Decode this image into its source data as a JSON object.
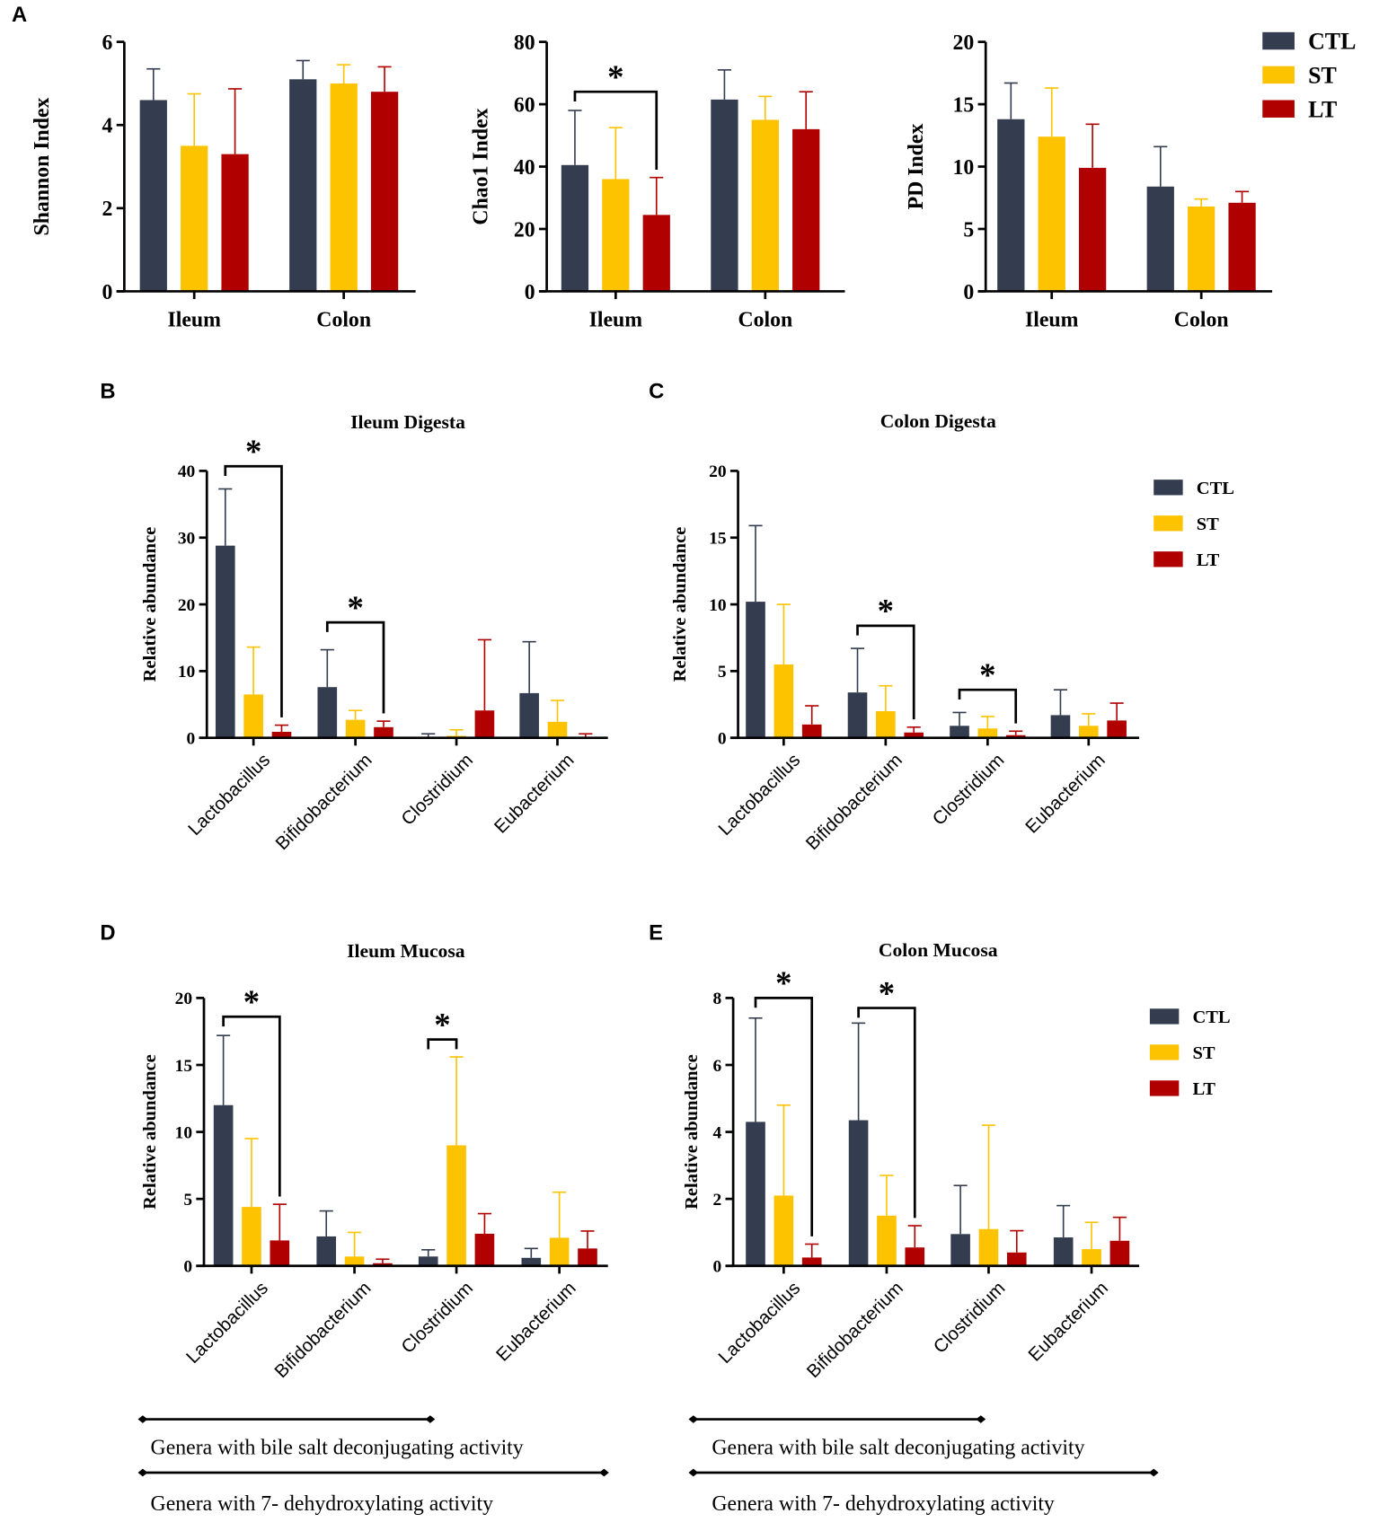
{
  "colors": {
    "CTL": "#333d4f",
    "ST": "#fdc300",
    "LT": "#b00000"
  },
  "legend": {
    "entries": [
      "CTL",
      "ST",
      "LT"
    ]
  },
  "footnotes": {
    "bile_salt": "Genera with bile salt deconjugating activity",
    "dehydroxylating": "Genera with 7- dehydroxylating activity"
  },
  "chart_data": [
    {
      "panel_label": "A",
      "type": "bar",
      "title": "",
      "ylabel": "Shannon Index",
      "ylim": [
        0,
        6
      ],
      "yticks": [
        "0",
        "2",
        "4",
        "6"
      ],
      "categories": [
        "Ileum",
        "Colon"
      ],
      "series": [
        {
          "name": "CTL",
          "values": [
            4.6,
            5.1
          ],
          "errors": [
            0.75,
            0.45
          ]
        },
        {
          "name": "ST",
          "values": [
            3.5,
            5.0
          ],
          "errors": [
            1.25,
            0.45
          ]
        },
        {
          "name": "LT",
          "values": [
            3.3,
            4.8
          ],
          "errors": [
            1.57,
            0.6
          ]
        }
      ],
      "significance": []
    },
    {
      "panel_label": "",
      "type": "bar",
      "title": "",
      "ylabel": "Chao1 Index",
      "ylim": [
        0,
        80
      ],
      "yticks": [
        "0",
        "20",
        "40",
        "60",
        "80"
      ],
      "categories": [
        "Ileum",
        "Colon"
      ],
      "series": [
        {
          "name": "CTL",
          "values": [
            40.5,
            61.5
          ],
          "errors": [
            17.5,
            9.5
          ]
        },
        {
          "name": "ST",
          "values": [
            36,
            55
          ],
          "errors": [
            16.5,
            7.5
          ]
        },
        {
          "name": "LT",
          "values": [
            24.5,
            52
          ],
          "errors": [
            12,
            12
          ]
        }
      ],
      "significance": [
        {
          "category": 0,
          "from": 0,
          "to": 2,
          "label": "*",
          "y": 64
        }
      ]
    },
    {
      "panel_label": "",
      "type": "bar",
      "title": "",
      "ylabel": "PD Index",
      "ylim": [
        0,
        20
      ],
      "yticks": [
        "0",
        "5",
        "10",
        "15",
        "20"
      ],
      "categories": [
        "Ileum",
        "Colon"
      ],
      "series": [
        {
          "name": "CTL",
          "values": [
            13.8,
            8.4
          ],
          "errors": [
            2.9,
            3.2
          ]
        },
        {
          "name": "ST",
          "values": [
            12.4,
            6.8
          ],
          "errors": [
            3.9,
            0.6
          ]
        },
        {
          "name": "LT",
          "values": [
            9.9,
            7.1
          ],
          "errors": [
            3.5,
            0.9
          ]
        }
      ],
      "significance": []
    },
    {
      "panel_label": "B",
      "type": "bar",
      "title": "Ileum Digesta",
      "ylabel": "Relative abundance",
      "ylim": [
        0,
        40
      ],
      "yticks": [
        "0",
        "10",
        "20",
        "30",
        "40"
      ],
      "categories": [
        "Lactobacillus",
        "Bifidobacterium",
        "Clostridium",
        "Eubacterium"
      ],
      "series": [
        {
          "name": "CTL",
          "values": [
            28.8,
            7.6,
            0.1,
            6.7
          ],
          "errors": [
            8.5,
            5.6,
            0.5,
            7.7
          ]
        },
        {
          "name": "ST",
          "values": [
            6.5,
            2.7,
            0.3,
            2.4
          ],
          "errors": [
            7.1,
            1.4,
            0.9,
            3.2
          ]
        },
        {
          "name": "LT",
          "values": [
            0.9,
            1.6,
            4.1,
            0.1
          ],
          "errors": [
            1.0,
            0.9,
            10.6,
            0.5
          ]
        }
      ],
      "significance": [
        {
          "category": 0,
          "from": 0,
          "to": 2,
          "label": "*",
          "y": 40.7
        },
        {
          "category": 1,
          "from": 0,
          "to": 2,
          "label": "*",
          "y": 17.3
        }
      ]
    },
    {
      "panel_label": "C",
      "type": "bar",
      "title": "Colon Digesta",
      "ylabel": "Relative abundance",
      "ylim": [
        0,
        20
      ],
      "yticks": [
        "0",
        "5",
        "10",
        "15",
        "20"
      ],
      "categories": [
        "Lactobacillus",
        "Bifidobacterium",
        "Clostridium",
        "Eubacterium"
      ],
      "series": [
        {
          "name": "CTL",
          "values": [
            10.2,
            3.4,
            0.9,
            1.7
          ],
          "errors": [
            5.7,
            3.3,
            1.0,
            1.9
          ]
        },
        {
          "name": "ST",
          "values": [
            5.5,
            2.0,
            0.7,
            0.9
          ],
          "errors": [
            4.5,
            1.9,
            0.9,
            0.9
          ]
        },
        {
          "name": "LT",
          "values": [
            1.0,
            0.4,
            0.2,
            1.3
          ],
          "errors": [
            1.4,
            0.4,
            0.3,
            1.3
          ]
        }
      ],
      "significance": [
        {
          "category": 1,
          "from": 0,
          "to": 2,
          "label": "*",
          "y": 8.4
        },
        {
          "category": 2,
          "from": 0,
          "to": 2,
          "label": "*",
          "y": 3.6
        }
      ]
    },
    {
      "panel_label": "D",
      "type": "bar",
      "title": "Ileum Mucosa",
      "ylabel": "Relative abundance",
      "ylim": [
        0,
        20
      ],
      "yticks": [
        "0",
        "5",
        "10",
        "15",
        "20"
      ],
      "categories": [
        "Lactobacillus",
        "Bifidobacterium",
        "Clostridium",
        "Eubacterium"
      ],
      "series": [
        {
          "name": "CTL",
          "values": [
            12.0,
            2.2,
            0.7,
            0.6
          ],
          "errors": [
            5.2,
            1.9,
            0.5,
            0.7
          ]
        },
        {
          "name": "ST",
          "values": [
            4.4,
            0.7,
            9.0,
            2.1
          ],
          "errors": [
            5.1,
            1.8,
            6.6,
            3.4
          ]
        },
        {
          "name": "LT",
          "values": [
            1.9,
            0.2,
            2.4,
            1.3
          ],
          "errors": [
            2.7,
            0.3,
            1.5,
            1.3
          ]
        }
      ],
      "significance": [
        {
          "category": 0,
          "from": 0,
          "to": 2,
          "label": "*",
          "y": 18.6
        },
        {
          "category": 2,
          "from": 0,
          "to": 1,
          "label": "*",
          "y": 16.9
        }
      ]
    },
    {
      "panel_label": "E",
      "type": "bar",
      "title": "Colon Mucosa",
      "ylabel": "Relative abundance",
      "ylim": [
        0,
        8
      ],
      "yticks": [
        "0",
        "2",
        "4",
        "6",
        "8"
      ],
      "categories": [
        "Lactobacillus",
        "Bifidobacterium",
        "Clostridium",
        "Eubacterium"
      ],
      "series": [
        {
          "name": "CTL",
          "values": [
            4.3,
            4.35,
            0.95,
            0.85
          ],
          "errors": [
            3.1,
            2.9,
            1.45,
            0.95
          ]
        },
        {
          "name": "ST",
          "values": [
            2.1,
            1.5,
            1.1,
            0.5
          ],
          "errors": [
            2.7,
            1.2,
            3.1,
            0.8
          ]
        },
        {
          "name": "LT",
          "values": [
            0.25,
            0.55,
            0.4,
            0.75
          ],
          "errors": [
            0.4,
            0.65,
            0.65,
            0.7
          ]
        }
      ],
      "significance": [
        {
          "category": 0,
          "from": 0,
          "to": 2,
          "label": "*",
          "y": 8.0
        },
        {
          "category": 1,
          "from": 0,
          "to": 2,
          "label": "*",
          "y": 7.7
        }
      ]
    }
  ]
}
